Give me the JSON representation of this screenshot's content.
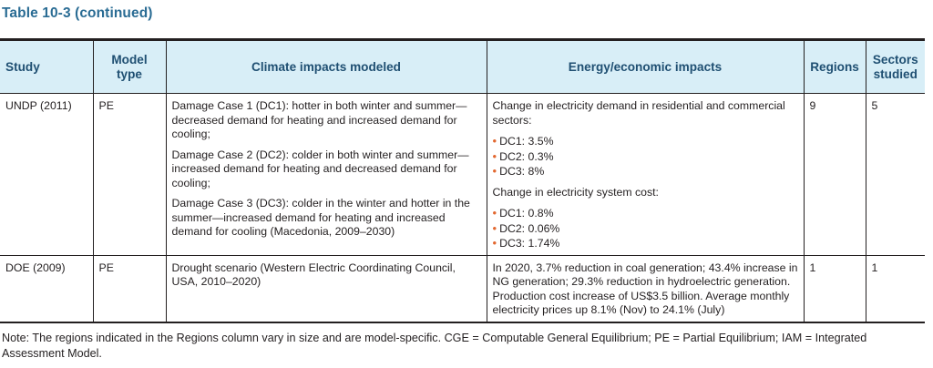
{
  "caption": "Table 10-3 (continued)",
  "headers": {
    "study": "Study",
    "model_type": "Model type",
    "climate": "Climate impacts modeled",
    "energy": "Energy/economic impacts",
    "regions": "Regions",
    "sectors": "Sectors studied"
  },
  "rows": [
    {
      "study": "UNDP (2011)",
      "model_type": "PE",
      "climate": [
        "Damage Case 1 (DC1): hotter in both winter and summer—decreased demand for heating and increased demand for cooling;",
        "Damage Case 2 (DC2): colder in both winter and summer—increased demand for heating and decreased demand for cooling;",
        "Damage Case 3 (DC3): colder in the winter and hotter in the summer—increased demand for heating and increased demand for cooling (Macedonia, 2009–2030)"
      ],
      "energy": {
        "intro_1": "Change in electricity demand in residential and commercial sectors:",
        "bullets_1": [
          "DC1: 3.5%",
          "DC2: 0.3%",
          "DC3: 8%"
        ],
        "intro_2": "Change in electricity system cost:",
        "bullets_2": [
          "DC1: 0.8%",
          "DC2: 0.06%",
          "DC3: 1.74%"
        ]
      },
      "regions": "9",
      "sectors": "5"
    },
    {
      "study": "DOE (2009)",
      "model_type": "PE",
      "climate": [
        "Drought scenario (Western Electric Coordinating Council, USA, 2010–2020)"
      ],
      "energy": {
        "text": "In 2020, 3.7% reduction in coal generation; 43.4% increase in NG generation; 29.3% reduction in hydroelectric generation. Production cost increase of US$3.5 billion. Average monthly electricity prices up 8.1% (Nov) to 24.1% (July)"
      },
      "regions": "1",
      "sectors": "1"
    }
  ],
  "note": "Note: The regions indicated in the Regions column vary in size and are model-specific. CGE = Computable General Equilibrium; PE = Partial Equilibrium; IAM = Integrated Assessment Model."
}
